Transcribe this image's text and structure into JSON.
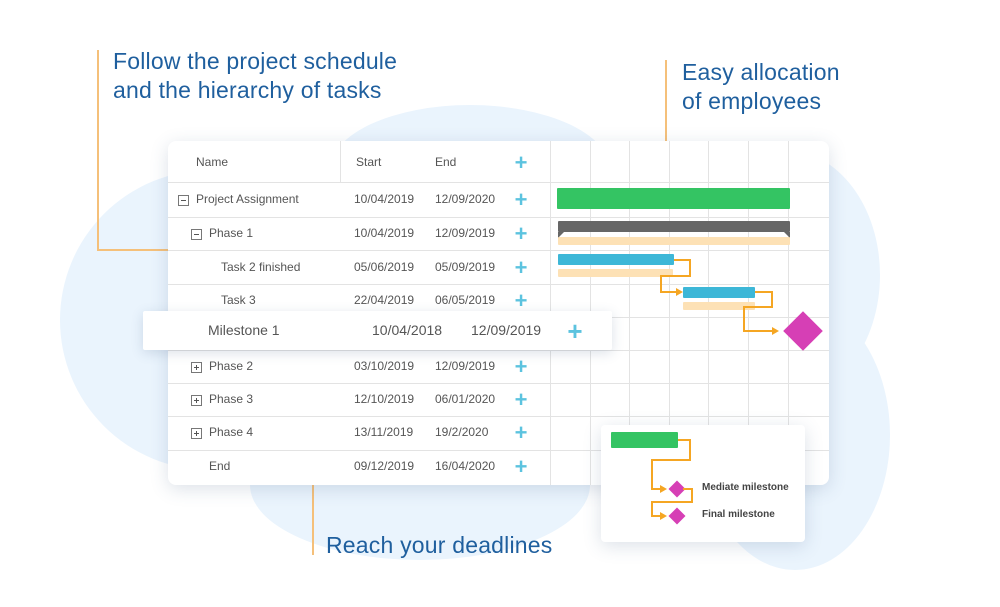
{
  "callouts": {
    "schedule": [
      "Follow the project schedule",
      "and the hierarchy of tasks"
    ],
    "allocation": [
      "Easy allocation",
      "of employees"
    ],
    "deadlines": "Reach your deadlines"
  },
  "grid": {
    "headers": {
      "name": "Name",
      "start": "Start",
      "end": "End"
    },
    "rows": [
      {
        "name": "Project Assignment",
        "start": "10/04/2019",
        "end": "12/09/2020",
        "tree": "collapse"
      },
      {
        "name": "Phase 1",
        "start": "10/04/2019",
        "end": "12/09/2019",
        "tree": "collapse"
      },
      {
        "name": "Task 2 finished",
        "start": "05/06/2019",
        "end": "05/09/2019",
        "tree": "none"
      },
      {
        "name": "Task 3",
        "start": "22/04/2019",
        "end": "06/05/2019",
        "tree": "none"
      },
      {
        "name": "Phase 2",
        "start": "03/10/2019",
        "end": "12/09/2019",
        "tree": "expand"
      },
      {
        "name": "Phase 3",
        "start": "12/10/2019",
        "end": "06/01/2020",
        "tree": "expand"
      },
      {
        "name": "Phase 4",
        "start": "13/11/2019",
        "end": "19/2/2020",
        "tree": "expand"
      },
      {
        "name": "End",
        "start": "09/12/2019",
        "end": "16/04/2020",
        "tree": "none"
      }
    ],
    "milestone": {
      "name": "Milestone 1",
      "start": "10/04/2018",
      "end": "12/09/2019"
    }
  },
  "legend": {
    "mediate": "Mediate milestone",
    "final": "Final milestone"
  },
  "colors": {
    "green": "#34c463",
    "blue": "#3db7d7",
    "peach": "#fde1b5",
    "dark": "#666666",
    "magenta": "#d63fb5",
    "orange": "#f5a623",
    "plus": "#5cc3df"
  },
  "icons": {
    "add": "plus-icon",
    "collapse": "minus-square-icon",
    "expand": "plus-square-icon"
  }
}
